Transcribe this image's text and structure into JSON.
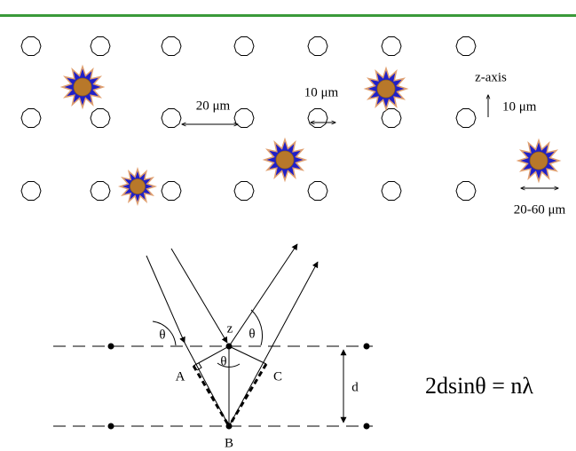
{
  "top_panel": {
    "spacing_label": "20 μm",
    "diameter_label": "10 μm",
    "axis_label": "z-axis",
    "axis_step_label": "10 μm",
    "particle_size_label": "20-60 μm"
  },
  "bottom_panel": {
    "point_labels": {
      "z": "z",
      "a": "A",
      "b": "B",
      "c": "C"
    },
    "angle_labels": [
      "θ",
      "θ",
      "θ"
    ],
    "spacing_label": "d",
    "equation": "2dsinθ = nλ"
  }
}
